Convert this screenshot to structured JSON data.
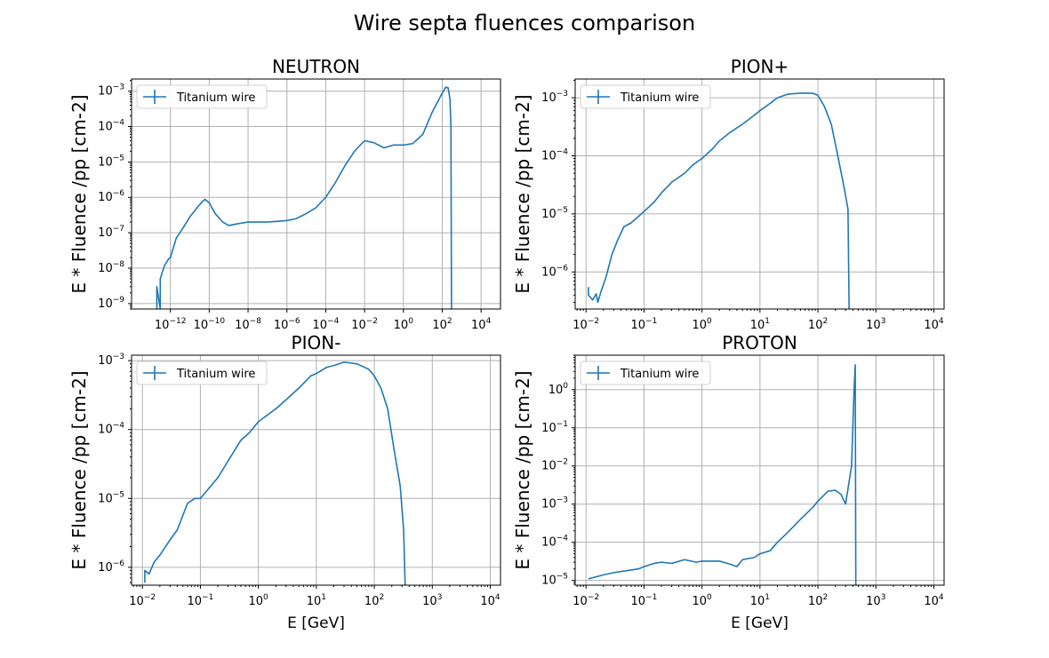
{
  "figure": {
    "title": "Wire septa fluences comparison"
  },
  "chart_data": [
    {
      "type": "line",
      "title": "NEUTRON",
      "xlabel": "",
      "ylabel": "E * Fluence /pp [cm-2]",
      "xscale": "log",
      "yscale": "log",
      "xlim": [
        1e-14,
        100000.0
      ],
      "ylim": [
        7e-10,
        0.0022
      ],
      "xticks": [
        1e-12,
        1e-10,
        1e-08,
        1e-06,
        0.0001,
        0.01,
        1,
        100.0,
        10000.0
      ],
      "yticks": [
        1e-09,
        1e-08,
        1e-07,
        1e-06,
        1e-05,
        0.0001,
        0.001
      ],
      "grid": true,
      "legend": "upper-left",
      "series": [
        {
          "name": "Titanium wire",
          "points": [
            [
              2e-13,
              7e-10
            ],
            [
              2e-13,
              3e-09
            ],
            [
              3e-13,
              7e-10
            ],
            [
              3e-13,
              5e-09
            ],
            [
              5e-13,
              1.2e-08
            ],
            [
              8e-13,
              1.8e-08
            ],
            [
              1e-12,
              2e-08
            ],
            [
              2e-12,
              7e-08
            ],
            [
              5e-12,
              1.5e-07
            ],
            [
              1e-11,
              2.8e-07
            ],
            [
              3e-11,
              6e-07
            ],
            [
              6e-11,
              8.8e-07
            ],
            [
              1e-10,
              7e-07
            ],
            [
              2e-10,
              3.5e-07
            ],
            [
              5e-10,
              2e-07
            ],
            [
              1e-09,
              1.6e-07
            ],
            [
              3e-09,
              1.8e-07
            ],
            [
              1e-08,
              2e-07
            ],
            [
              1e-07,
              2e-07
            ],
            [
              1e-06,
              2.2e-07
            ],
            [
              3e-06,
              2.5e-07
            ],
            [
              1e-05,
              3.5e-07
            ],
            [
              3e-05,
              5e-07
            ],
            [
              0.0001,
              1e-06
            ],
            [
              0.0003,
              2.5e-06
            ],
            [
              0.001,
              8e-06
            ],
            [
              0.003,
              2e-05
            ],
            [
              0.01,
              4e-05
            ],
            [
              0.03,
              3.5e-05
            ],
            [
              0.1,
              2.5e-05
            ],
            [
              0.3,
              3e-05
            ],
            [
              1,
              3e-05
            ],
            [
              3,
              3.3e-05
            ],
            [
              10,
              6e-05
            ],
            [
              30,
              0.00025
            ],
            [
              80,
              0.0007
            ],
            [
              150,
              0.0013
            ],
            [
              200,
              0.00125
            ],
            [
              250,
              0.0006
            ],
            [
              280,
              0.0001
            ],
            [
              300,
              7e-10
            ]
          ]
        }
      ]
    },
    {
      "type": "line",
      "title": "PION+",
      "xlabel": "",
      "ylabel": "E * Fluence /pp [cm-2]",
      "xscale": "log",
      "yscale": "log",
      "xlim": [
        0.0065,
        15000.0
      ],
      "ylim": [
        2.3e-07,
        0.0021
      ],
      "xticks": [
        0.01,
        0.1,
        1,
        10,
        100,
        1000,
        10000
      ],
      "yticks": [
        1e-06,
        1e-05,
        0.0001,
        0.001
      ],
      "grid": true,
      "legend": "upper-left",
      "series": [
        {
          "name": "Titanium wire",
          "points": [
            [
              0.011,
              5.5e-07
            ],
            [
              0.011,
              4e-07
            ],
            [
              0.013,
              3.3e-07
            ],
            [
              0.015,
              4.2e-07
            ],
            [
              0.016,
              3e-07
            ],
            [
              0.018,
              4.5e-07
            ],
            [
              0.022,
              8e-07
            ],
            [
              0.028,
              2e-06
            ],
            [
              0.035,
              3.5e-06
            ],
            [
              0.045,
              6e-06
            ],
            [
              0.06,
              7e-06
            ],
            [
              0.08,
              9e-06
            ],
            [
              0.1,
              1.1e-05
            ],
            [
              0.15,
              1.6e-05
            ],
            [
              0.2,
              2.3e-05
            ],
            [
              0.3,
              3.5e-05
            ],
            [
              0.5,
              5e-05
            ],
            [
              0.7,
              7e-05
            ],
            [
              1,
              9e-05
            ],
            [
              1.5,
              0.00013
            ],
            [
              2,
              0.00018
            ],
            [
              3,
              0.00025
            ],
            [
              5,
              0.00035
            ],
            [
              8,
              0.0005
            ],
            [
              10,
              0.0006
            ],
            [
              15,
              0.0008
            ],
            [
              20,
              0.001
            ],
            [
              30,
              0.00115
            ],
            [
              50,
              0.0012
            ],
            [
              80,
              0.0012
            ],
            [
              100,
              0.0011
            ],
            [
              130,
              0.0007
            ],
            [
              170,
              0.00035
            ],
            [
              220,
              0.0001
            ],
            [
              280,
              3e-05
            ],
            [
              330,
              1.2e-05
            ],
            [
              345,
              2.3e-07
            ]
          ]
        }
      ]
    },
    {
      "type": "line",
      "title": "PION-",
      "xlabel": "E [GeV]",
      "ylabel": "E * Fluence /pp [cm-2]",
      "xscale": "log",
      "yscale": "log",
      "xlim": [
        0.0065,
        15000.0
      ],
      "ylim": [
        5.5e-07,
        0.0012
      ],
      "xticks": [
        0.01,
        0.1,
        1,
        10,
        100,
        1000,
        10000
      ],
      "yticks": [
        1e-06,
        1e-05,
        0.0001,
        0.001
      ],
      "grid": true,
      "legend": "upper-left",
      "series": [
        {
          "name": "Titanium wire",
          "points": [
            [
              0.011,
              6e-07
            ],
            [
              0.011,
              9e-07
            ],
            [
              0.013,
              8e-07
            ],
            [
              0.016,
              1.2e-06
            ],
            [
              0.02,
              1.5e-06
            ],
            [
              0.03,
              2.5e-06
            ],
            [
              0.04,
              3.5e-06
            ],
            [
              0.06,
              8.5e-06
            ],
            [
              0.08,
              1e-05
            ],
            [
              0.1,
              1e-05
            ],
            [
              0.15,
              1.5e-05
            ],
            [
              0.2,
              2e-05
            ],
            [
              0.3,
              3.5e-05
            ],
            [
              0.5,
              7e-05
            ],
            [
              0.7,
              9e-05
            ],
            [
              1,
              0.00013
            ],
            [
              2,
              0.0002
            ],
            [
              3,
              0.00027
            ],
            [
              5,
              0.0004
            ],
            [
              8,
              0.0006
            ],
            [
              10,
              0.00065
            ],
            [
              15,
              0.0008
            ],
            [
              20,
              0.00085
            ],
            [
              30,
              0.00095
            ],
            [
              50,
              0.0009
            ],
            [
              80,
              0.00075
            ],
            [
              100,
              0.0006
            ],
            [
              130,
              0.0004
            ],
            [
              170,
              0.0002
            ],
            [
              220,
              5e-05
            ],
            [
              280,
              1.5e-05
            ],
            [
              320,
              3.5e-06
            ],
            [
              340,
              5.5e-07
            ]
          ]
        }
      ]
    },
    {
      "type": "line",
      "title": "PROTON",
      "xlabel": "E [GeV]",
      "ylabel": "E * Fluence /pp [cm-2]",
      "xscale": "log",
      "yscale": "log",
      "xlim": [
        0.0065,
        15000.0
      ],
      "ylim": [
        7.5e-06,
        8
      ],
      "xticks": [
        0.01,
        0.1,
        1,
        10,
        100,
        1000,
        10000
      ],
      "yticks": [
        1e-05,
        0.0001,
        0.001,
        0.01,
        0.1,
        1
      ],
      "grid": true,
      "legend": "upper-left",
      "series": [
        {
          "name": "Titanium wire",
          "points": [
            [
              0.011,
              1.1e-05
            ],
            [
              0.02,
              1.4e-05
            ],
            [
              0.03,
              1.6e-05
            ],
            [
              0.05,
              1.8e-05
            ],
            [
              0.08,
              2e-05
            ],
            [
              0.1,
              2.3e-05
            ],
            [
              0.15,
              2.8e-05
            ],
            [
              0.2,
              3e-05
            ],
            [
              0.3,
              2.8e-05
            ],
            [
              0.5,
              3.5e-05
            ],
            [
              0.8,
              3e-05
            ],
            [
              1,
              3.2e-05
            ],
            [
              2,
              3.2e-05
            ],
            [
              3,
              2.7e-05
            ],
            [
              4,
              2.3e-05
            ],
            [
              5,
              3.5e-05
            ],
            [
              8,
              4e-05
            ],
            [
              10,
              5e-05
            ],
            [
              15,
              6e-05
            ],
            [
              20,
              0.0001
            ],
            [
              30,
              0.00018
            ],
            [
              50,
              0.0004
            ],
            [
              80,
              0.0008
            ],
            [
              100,
              0.0012
            ],
            [
              150,
              0.0022
            ],
            [
              200,
              0.0023
            ],
            [
              250,
              0.0018
            ],
            [
              300,
              0.001
            ],
            [
              380,
              0.01
            ],
            [
              420,
              1
            ],
            [
              440,
              4.5
            ],
            [
              450,
              7.5e-06
            ]
          ]
        }
      ]
    }
  ]
}
